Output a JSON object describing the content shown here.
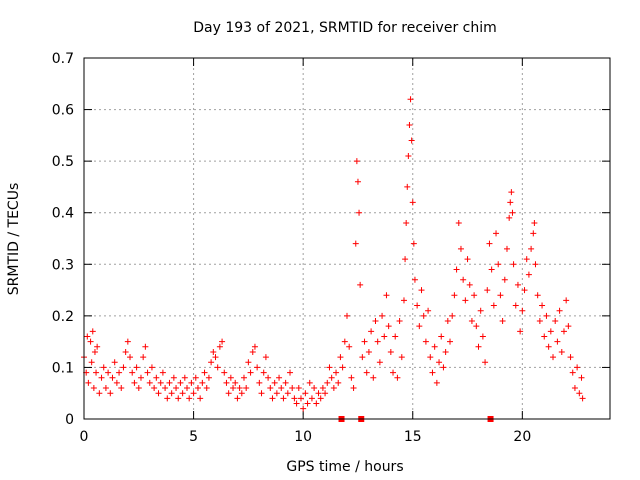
{
  "chart_data": {
    "type": "scatter",
    "title": "Day 193 of 2021, SRMTID for receiver chim",
    "xlabel": "GPS time / hours",
    "ylabel": "SRMTID / TECUs",
    "xlim": [
      0,
      24
    ],
    "ylim": [
      0,
      0.7
    ],
    "xticks": [
      0,
      5,
      10,
      15,
      20
    ],
    "yticks": [
      0,
      0.1,
      0.2,
      0.3,
      0.4,
      0.5,
      0.6,
      0.7
    ],
    "ytick_labels": [
      "0",
      "0.1",
      "0.2",
      "0.3",
      "0.4",
      "0.5",
      "0.6",
      "0.7"
    ],
    "grid": true,
    "marker": "+",
    "series_color": "#ff0000",
    "x_axis_event_markers": [
      11.75,
      12.65,
      18.55
    ],
    "series": [
      {
        "name": "SRMTID",
        "points": [
          [
            0.0,
            0.12
          ],
          [
            0.1,
            0.09
          ],
          [
            0.15,
            0.16
          ],
          [
            0.2,
            0.07
          ],
          [
            0.3,
            0.15
          ],
          [
            0.35,
            0.11
          ],
          [
            0.4,
            0.17
          ],
          [
            0.45,
            0.06
          ],
          [
            0.5,
            0.13
          ],
          [
            0.55,
            0.09
          ],
          [
            0.6,
            0.14
          ],
          [
            0.7,
            0.05
          ],
          [
            0.8,
            0.08
          ],
          [
            0.9,
            0.1
          ],
          [
            1.0,
            0.06
          ],
          [
            1.1,
            0.09
          ],
          [
            1.2,
            0.05
          ],
          [
            1.3,
            0.08
          ],
          [
            1.4,
            0.11
          ],
          [
            1.5,
            0.07
          ],
          [
            1.6,
            0.09
          ],
          [
            1.7,
            0.06
          ],
          [
            1.8,
            0.1
          ],
          [
            1.9,
            0.13
          ],
          [
            2.0,
            0.15
          ],
          [
            2.1,
            0.12
          ],
          [
            2.2,
            0.09
          ],
          [
            2.3,
            0.07
          ],
          [
            2.4,
            0.1
          ],
          [
            2.5,
            0.06
          ],
          [
            2.6,
            0.08
          ],
          [
            2.7,
            0.12
          ],
          [
            2.8,
            0.14
          ],
          [
            2.9,
            0.09
          ],
          [
            3.0,
            0.07
          ],
          [
            3.1,
            0.1
          ],
          [
            3.2,
            0.06
          ],
          [
            3.3,
            0.08
          ],
          [
            3.4,
            0.05
          ],
          [
            3.5,
            0.07
          ],
          [
            3.6,
            0.09
          ],
          [
            3.7,
            0.06
          ],
          [
            3.8,
            0.04
          ],
          [
            3.9,
            0.07
          ],
          [
            4.0,
            0.05
          ],
          [
            4.1,
            0.08
          ],
          [
            4.2,
            0.06
          ],
          [
            4.3,
            0.04
          ],
          [
            4.4,
            0.07
          ],
          [
            4.5,
            0.05
          ],
          [
            4.6,
            0.08
          ],
          [
            4.7,
            0.06
          ],
          [
            4.8,
            0.04
          ],
          [
            4.9,
            0.07
          ],
          [
            5.0,
            0.05
          ],
          [
            5.1,
            0.08
          ],
          [
            5.2,
            0.06
          ],
          [
            5.3,
            0.04
          ],
          [
            5.4,
            0.07
          ],
          [
            5.5,
            0.09
          ],
          [
            5.6,
            0.06
          ],
          [
            5.7,
            0.08
          ],
          [
            5.8,
            0.11
          ],
          [
            5.9,
            0.13
          ],
          [
            6.0,
            0.12
          ],
          [
            6.1,
            0.1
          ],
          [
            6.2,
            0.14
          ],
          [
            6.3,
            0.15
          ],
          [
            6.4,
            0.09
          ],
          [
            6.5,
            0.07
          ],
          [
            6.6,
            0.05
          ],
          [
            6.7,
            0.08
          ],
          [
            6.8,
            0.06
          ],
          [
            6.9,
            0.07
          ],
          [
            7.0,
            0.04
          ],
          [
            7.1,
            0.06
          ],
          [
            7.2,
            0.05
          ],
          [
            7.3,
            0.08
          ],
          [
            7.4,
            0.06
          ],
          [
            7.5,
            0.11
          ],
          [
            7.6,
            0.09
          ],
          [
            7.7,
            0.13
          ],
          [
            7.8,
            0.14
          ],
          [
            7.9,
            0.1
          ],
          [
            8.0,
            0.07
          ],
          [
            8.1,
            0.05
          ],
          [
            8.2,
            0.09
          ],
          [
            8.3,
            0.12
          ],
          [
            8.4,
            0.08
          ],
          [
            8.5,
            0.06
          ],
          [
            8.6,
            0.04
          ],
          [
            8.7,
            0.07
          ],
          [
            8.8,
            0.05
          ],
          [
            8.9,
            0.08
          ],
          [
            9.0,
            0.06
          ],
          [
            9.1,
            0.04
          ],
          [
            9.2,
            0.07
          ],
          [
            9.3,
            0.05
          ],
          [
            9.4,
            0.09
          ],
          [
            9.5,
            0.06
          ],
          [
            9.6,
            0.04
          ],
          [
            9.7,
            0.03
          ],
          [
            9.8,
            0.06
          ],
          [
            9.9,
            0.04
          ],
          [
            10.0,
            0.02
          ],
          [
            10.1,
            0.05
          ],
          [
            10.2,
            0.03
          ],
          [
            10.3,
            0.07
          ],
          [
            10.4,
            0.04
          ],
          [
            10.5,
            0.06
          ],
          [
            10.6,
            0.03
          ],
          [
            10.7,
            0.05
          ],
          [
            10.8,
            0.04
          ],
          [
            10.9,
            0.06
          ],
          [
            11.0,
            0.05
          ],
          [
            11.1,
            0.07
          ],
          [
            11.2,
            0.1
          ],
          [
            11.3,
            0.08
          ],
          [
            11.4,
            0.06
          ],
          [
            11.5,
            0.09
          ],
          [
            11.6,
            0.07
          ],
          [
            11.7,
            0.12
          ],
          [
            11.8,
            0.1
          ],
          [
            11.9,
            0.15
          ],
          [
            12.0,
            0.2
          ],
          [
            12.1,
            0.14
          ],
          [
            12.2,
            0.08
          ],
          [
            12.3,
            0.06
          ],
          [
            12.4,
            0.34
          ],
          [
            12.45,
            0.5
          ],
          [
            12.5,
            0.46
          ],
          [
            12.55,
            0.4
          ],
          [
            12.6,
            0.26
          ],
          [
            12.7,
            0.12
          ],
          [
            12.8,
            0.15
          ],
          [
            12.9,
            0.09
          ],
          [
            13.0,
            0.13
          ],
          [
            13.1,
            0.17
          ],
          [
            13.2,
            0.08
          ],
          [
            13.3,
            0.19
          ],
          [
            13.4,
            0.15
          ],
          [
            13.5,
            0.11
          ],
          [
            13.6,
            0.2
          ],
          [
            13.7,
            0.16
          ],
          [
            13.8,
            0.24
          ],
          [
            13.9,
            0.18
          ],
          [
            14.0,
            0.13
          ],
          [
            14.1,
            0.09
          ],
          [
            14.2,
            0.16
          ],
          [
            14.3,
            0.08
          ],
          [
            14.4,
            0.19
          ],
          [
            14.5,
            0.12
          ],
          [
            14.6,
            0.23
          ],
          [
            14.65,
            0.31
          ],
          [
            14.7,
            0.38
          ],
          [
            14.75,
            0.45
          ],
          [
            14.8,
            0.51
          ],
          [
            14.85,
            0.57
          ],
          [
            14.9,
            0.62
          ],
          [
            14.95,
            0.54
          ],
          [
            15.0,
            0.42
          ],
          [
            15.05,
            0.34
          ],
          [
            15.1,
            0.27
          ],
          [
            15.2,
            0.22
          ],
          [
            15.3,
            0.18
          ],
          [
            15.4,
            0.25
          ],
          [
            15.5,
            0.2
          ],
          [
            15.6,
            0.15
          ],
          [
            15.7,
            0.21
          ],
          [
            15.8,
            0.12
          ],
          [
            15.9,
            0.09
          ],
          [
            16.0,
            0.14
          ],
          [
            16.1,
            0.07
          ],
          [
            16.2,
            0.11
          ],
          [
            16.3,
            0.16
          ],
          [
            16.4,
            0.1
          ],
          [
            16.5,
            0.13
          ],
          [
            16.6,
            0.19
          ],
          [
            16.7,
            0.15
          ],
          [
            16.8,
            0.2
          ],
          [
            16.9,
            0.24
          ],
          [
            17.0,
            0.29
          ],
          [
            17.1,
            0.38
          ],
          [
            17.2,
            0.33
          ],
          [
            17.3,
            0.27
          ],
          [
            17.4,
            0.23
          ],
          [
            17.5,
            0.31
          ],
          [
            17.6,
            0.26
          ],
          [
            17.7,
            0.19
          ],
          [
            17.8,
            0.24
          ],
          [
            17.9,
            0.18
          ],
          [
            18.0,
            0.14
          ],
          [
            18.1,
            0.21
          ],
          [
            18.2,
            0.16
          ],
          [
            18.3,
            0.11
          ],
          [
            18.4,
            0.25
          ],
          [
            18.5,
            0.34
          ],
          [
            18.6,
            0.29
          ],
          [
            18.7,
            0.22
          ],
          [
            18.8,
            0.36
          ],
          [
            18.9,
            0.3
          ],
          [
            19.0,
            0.24
          ],
          [
            19.1,
            0.19
          ],
          [
            19.2,
            0.27
          ],
          [
            19.3,
            0.33
          ],
          [
            19.4,
            0.39
          ],
          [
            19.45,
            0.42
          ],
          [
            19.5,
            0.44
          ],
          [
            19.55,
            0.4
          ],
          [
            19.6,
            0.3
          ],
          [
            19.7,
            0.22
          ],
          [
            19.8,
            0.26
          ],
          [
            19.9,
            0.17
          ],
          [
            20.0,
            0.21
          ],
          [
            20.1,
            0.25
          ],
          [
            20.2,
            0.31
          ],
          [
            20.3,
            0.28
          ],
          [
            20.4,
            0.33
          ],
          [
            20.5,
            0.36
          ],
          [
            20.55,
            0.38
          ],
          [
            20.6,
            0.3
          ],
          [
            20.7,
            0.24
          ],
          [
            20.8,
            0.19
          ],
          [
            20.9,
            0.22
          ],
          [
            21.0,
            0.16
          ],
          [
            21.1,
            0.2
          ],
          [
            21.2,
            0.14
          ],
          [
            21.3,
            0.17
          ],
          [
            21.4,
            0.12
          ],
          [
            21.5,
            0.19
          ],
          [
            21.6,
            0.15
          ],
          [
            21.7,
            0.21
          ],
          [
            21.8,
            0.13
          ],
          [
            21.9,
            0.17
          ],
          [
            22.0,
            0.23
          ],
          [
            22.1,
            0.18
          ],
          [
            22.2,
            0.12
          ],
          [
            22.3,
            0.09
          ],
          [
            22.4,
            0.06
          ],
          [
            22.5,
            0.1
          ],
          [
            22.6,
            0.05
          ],
          [
            22.7,
            0.08
          ],
          [
            22.75,
            0.04
          ]
        ]
      }
    ]
  }
}
